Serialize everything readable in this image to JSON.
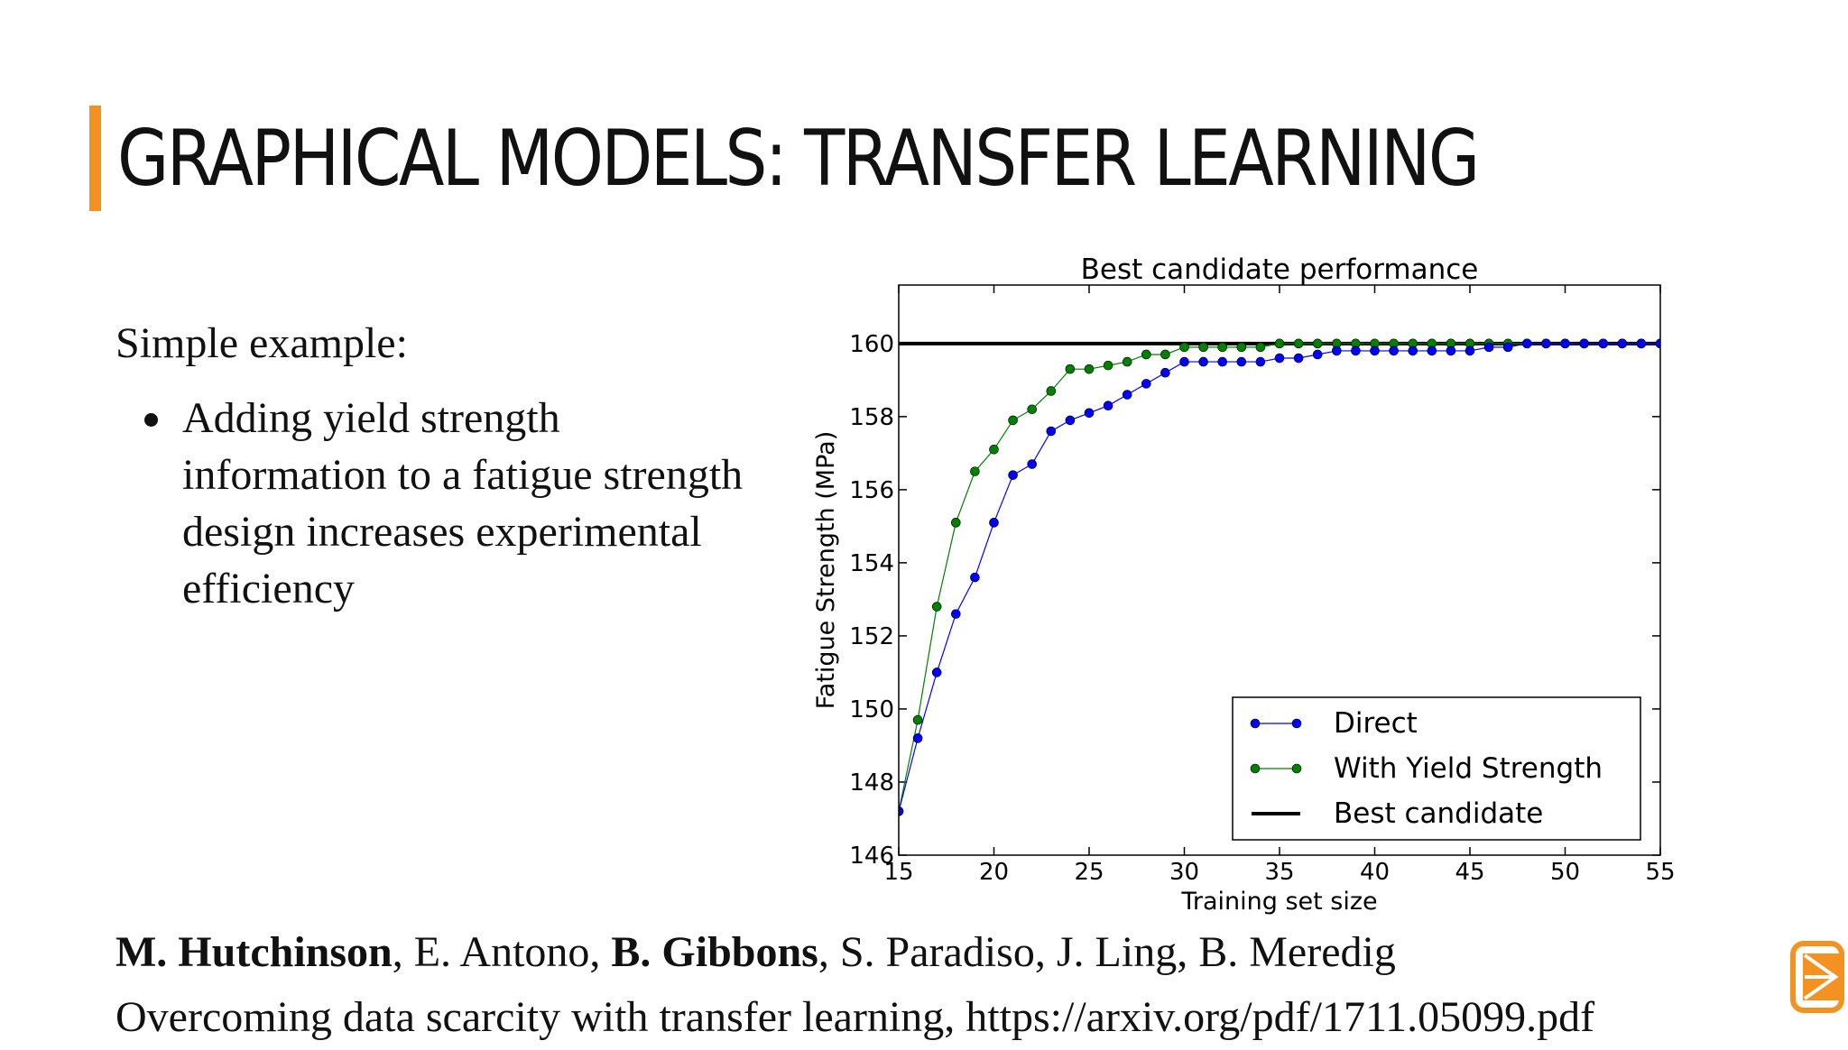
{
  "slide": {
    "title": "GRAPHICAL MODELS: TRANSFER LEARNING",
    "intro": "Simple example:",
    "bullets": [
      "Adding yield strength information to a fatigue strength design increases experimental efficiency"
    ],
    "citation": {
      "authors": [
        {
          "name": "M. Hutchinson",
          "bold": true
        },
        {
          "name": "E. Antono",
          "bold": false
        },
        {
          "name": "B. Gibbons",
          "bold": true
        },
        {
          "name": "S. Paradiso",
          "bold": false
        },
        {
          "name": "J. Ling",
          "bold": false
        },
        {
          "name": "B. Meredig",
          "bold": false
        }
      ],
      "separator": ", ",
      "paper": "Overcoming data scarcity with transfer learning, https://arxiv.org/pdf/1711.05099.pdf"
    },
    "accent_color": "#f39221"
  },
  "chart_data": {
    "type": "line",
    "title": "Best candidate performance",
    "xlabel": "Training set size",
    "ylabel": "Fatigue Strength (MPa)",
    "xlim": [
      15,
      55
    ],
    "ylim": [
      146,
      161.6
    ],
    "xticks": [
      15,
      20,
      25,
      30,
      35,
      40,
      45,
      50,
      55
    ],
    "yticks": [
      146,
      148,
      150,
      152,
      154,
      156,
      158,
      160
    ],
    "grid": false,
    "legend_position": "lower-right",
    "x": [
      15,
      16,
      17,
      18,
      19,
      20,
      21,
      22,
      23,
      24,
      25,
      26,
      27,
      28,
      29,
      30,
      31,
      32,
      33,
      34,
      35,
      36,
      37,
      38,
      39,
      40,
      41,
      42,
      43,
      44,
      45,
      46,
      47,
      48,
      49,
      50,
      51,
      52,
      53,
      54,
      55
    ],
    "series": [
      {
        "name": "Direct",
        "color": "#0000ff",
        "values": [
          147.2,
          149.2,
          151.0,
          152.6,
          153.6,
          155.1,
          156.4,
          156.7,
          157.6,
          157.9,
          158.1,
          158.3,
          158.6,
          158.9,
          159.2,
          159.5,
          159.5,
          159.5,
          159.5,
          159.5,
          159.6,
          159.6,
          159.7,
          159.8,
          159.8,
          159.8,
          159.8,
          159.8,
          159.8,
          159.8,
          159.8,
          159.9,
          159.9,
          160.0,
          160.0,
          160.0,
          160.0,
          160.0,
          160.0,
          160.0,
          160.0
        ]
      },
      {
        "name": "With Yield Strength",
        "color": "#008000",
        "values": [
          147.2,
          149.7,
          152.8,
          155.1,
          156.5,
          157.1,
          157.9,
          158.2,
          158.7,
          159.3,
          159.3,
          159.4,
          159.5,
          159.7,
          159.7,
          159.9,
          159.9,
          159.9,
          159.9,
          159.9,
          160.0,
          160.0,
          160.0,
          160.0,
          160.0,
          160.0,
          160.0,
          160.0,
          160.0,
          160.0,
          160.0,
          160.0,
          160.0,
          160.0,
          160.0,
          160.0,
          160.0,
          160.0,
          160.0,
          160.0,
          160.0
        ]
      },
      {
        "name": "Best candidate",
        "color": "#000000",
        "kind": "hline",
        "value": 160.0
      }
    ]
  }
}
